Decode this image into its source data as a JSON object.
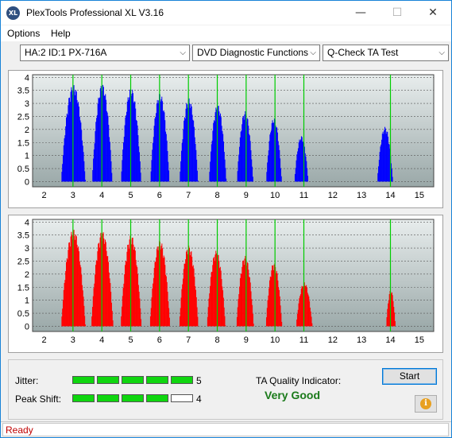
{
  "window": {
    "title": "PlexTools Professional XL V3.16",
    "icon_label": "XL"
  },
  "titlebar_controls": {
    "minimize": "—",
    "maximize": "☐",
    "close": "✕"
  },
  "menu": [
    {
      "label": "Options"
    },
    {
      "label": "Help"
    }
  ],
  "selectors": {
    "drive": "HA:2 ID:1  PX-716A",
    "function": "DVD Diagnostic Functions",
    "test": "Q-Check TA Test"
  },
  "chart_data": [
    {
      "type": "bar",
      "name": "top",
      "color": "#0000ff",
      "x_ticks": [
        "2",
        "3",
        "4",
        "5",
        "6",
        "7",
        "8",
        "9",
        "10",
        "11",
        "12",
        "13",
        "14",
        "15"
      ],
      "y_ticks": [
        "0",
        "0.5",
        "1",
        "1.5",
        "2",
        "2.5",
        "3",
        "3.5",
        "4"
      ],
      "xlim": [
        1.6,
        15.5
      ],
      "ylim": [
        -0.2,
        4.1
      ],
      "peaks": [
        {
          "center": 3.0,
          "height": 3.72,
          "width": 0.42
        },
        {
          "center": 4.0,
          "height": 3.75,
          "width": 0.35
        },
        {
          "center": 5.0,
          "height": 3.6,
          "width": 0.35
        },
        {
          "center": 6.0,
          "height": 3.4,
          "width": 0.33
        },
        {
          "center": 7.0,
          "height": 3.2,
          "width": 0.32
        },
        {
          "center": 8.0,
          "height": 2.95,
          "width": 0.3
        },
        {
          "center": 8.95,
          "height": 2.7,
          "width": 0.28
        },
        {
          "center": 9.95,
          "height": 2.45,
          "width": 0.27
        },
        {
          "center": 10.9,
          "height": 1.75,
          "width": 0.24
        },
        {
          "center": 13.8,
          "height": 2.1,
          "width": 0.27
        }
      ]
    },
    {
      "type": "bar",
      "name": "bottom",
      "color": "#ff0000",
      "x_ticks": [
        "2",
        "3",
        "4",
        "5",
        "6",
        "7",
        "8",
        "9",
        "10",
        "11",
        "12",
        "13",
        "14",
        "15"
      ],
      "y_ticks": [
        "0",
        "0.5",
        "1",
        "1.5",
        "2",
        "2.5",
        "3",
        "3.5",
        "4"
      ],
      "xlim": [
        1.6,
        15.5
      ],
      "ylim": [
        -0.2,
        4.1
      ],
      "peaks": [
        {
          "center": 3.0,
          "height": 3.72,
          "width": 0.42
        },
        {
          "center": 4.0,
          "height": 3.65,
          "width": 0.38
        },
        {
          "center": 5.0,
          "height": 3.5,
          "width": 0.36
        },
        {
          "center": 6.0,
          "height": 3.3,
          "width": 0.35
        },
        {
          "center": 7.0,
          "height": 3.1,
          "width": 0.33
        },
        {
          "center": 7.95,
          "height": 2.9,
          "width": 0.32
        },
        {
          "center": 8.95,
          "height": 2.7,
          "width": 0.3
        },
        {
          "center": 9.95,
          "height": 2.45,
          "width": 0.28
        },
        {
          "center": 11.0,
          "height": 1.7,
          "width": 0.28
        },
        {
          "center": 14.0,
          "height": 1.4,
          "width": 0.16
        }
      ]
    }
  ],
  "metrics": {
    "jitter": {
      "label": "Jitter:",
      "value": "5",
      "level": 5,
      "max": 5
    },
    "peak_shift": {
      "label": "Peak Shift:",
      "value": "4",
      "level": 4,
      "max": 5
    }
  },
  "ta_quality": {
    "label": "TA Quality Indicator:",
    "value": "Very Good"
  },
  "buttons": {
    "start": "Start",
    "info_icon": "info-icon"
  },
  "status": {
    "text": "Ready"
  },
  "colors": {
    "green_lines": "#00cc00",
    "plot_bg_top": "#e8eded",
    "plot_bg_bottom": "#9aa8a8"
  }
}
